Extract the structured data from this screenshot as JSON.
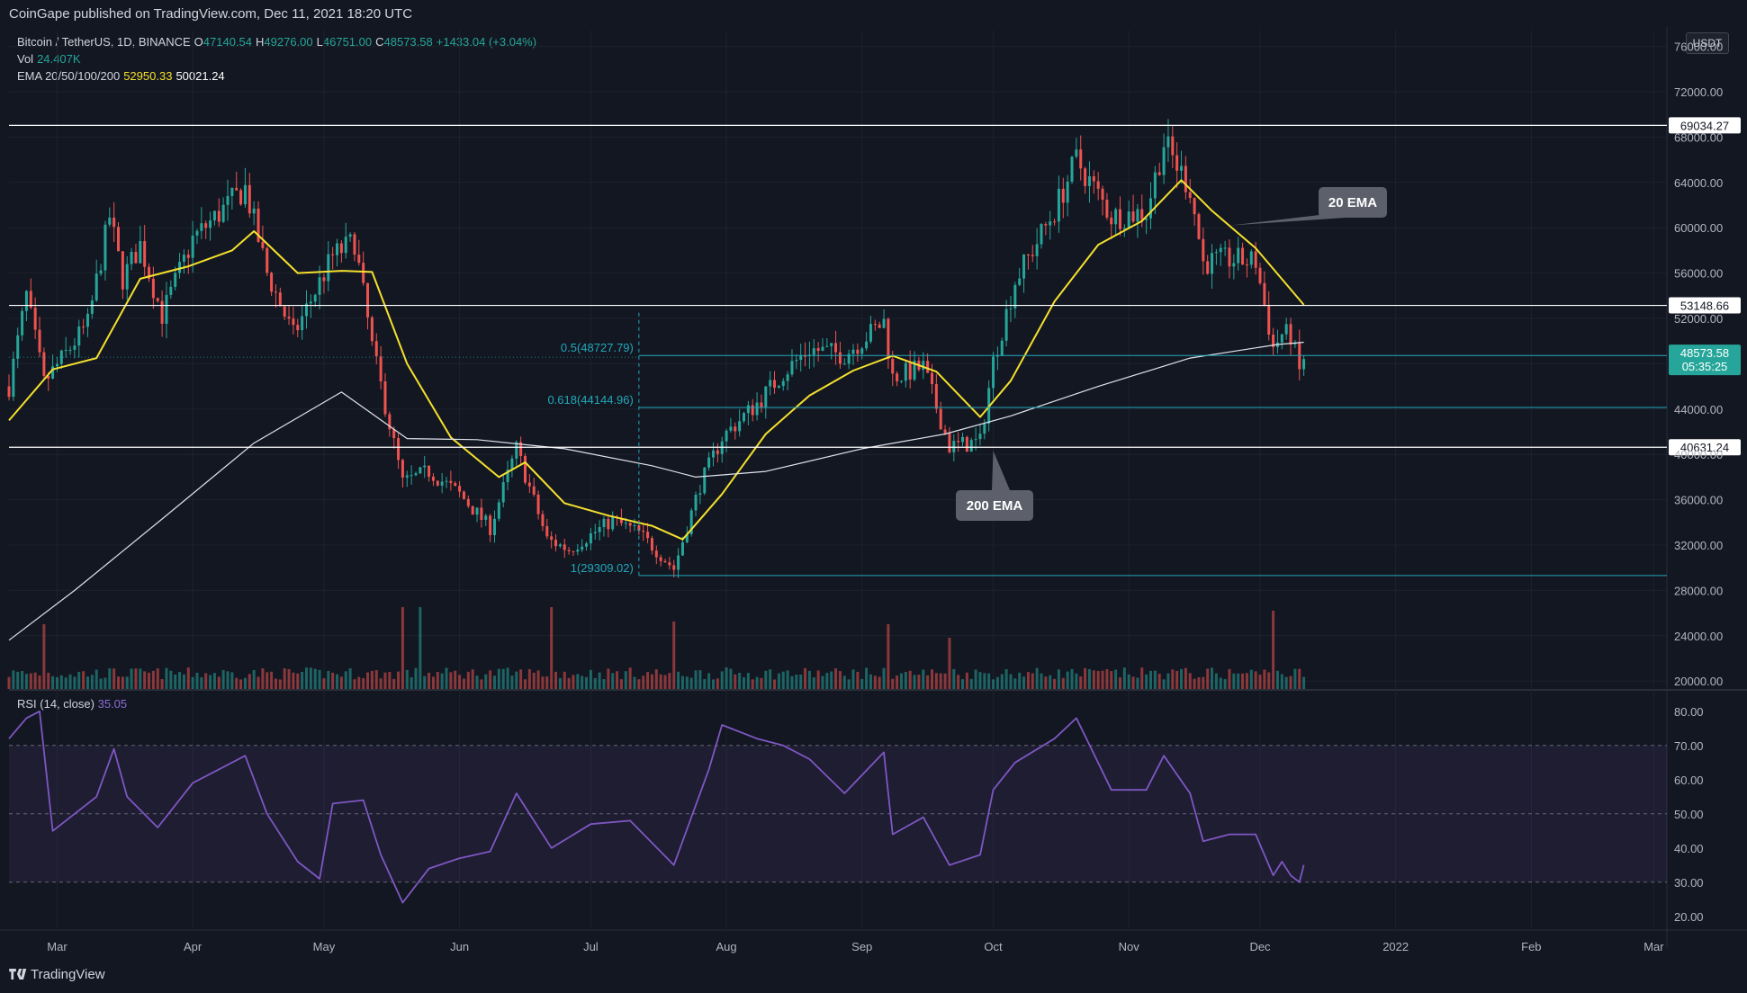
{
  "header": {
    "published": "CoinGape published on TradingView.com, Dec 11, 2021 18:20 UTC"
  },
  "legend": {
    "symbol": "Bitcoin / TetherUS, 1D, BINANCE",
    "open_label": "O",
    "open": "47140.54",
    "high_label": "H",
    "high": "49276.00",
    "low_label": "L",
    "low": "46751.00",
    "close_label": "C",
    "close": "48573.58",
    "change": "+1433.04 (+3.04%)",
    "vol_label": "Vol",
    "vol": "24.407K",
    "ema_label": "EMA 20/50/100/200",
    "ema_a": "52950.33",
    "ema_b": "50021.24"
  },
  "rsi_legend": {
    "label": "RSI (14, close)",
    "value": "35.05"
  },
  "currency": "USDT",
  "footer": {
    "brand": "TradingView"
  },
  "colors": {
    "background": "#131722",
    "up": "#26a69a",
    "down": "#ef5350",
    "ema20": "#f5e02d",
    "ema200": "#e0e3eb",
    "fib": "#22a7b8",
    "rsi": "#7e57c2",
    "level": "#ffffff"
  },
  "chart_data": [
    {
      "type": "line",
      "name": "price",
      "x_axis": {
        "tick_labels": [
          "Mar",
          "Apr",
          "May",
          "Jun",
          "Jul",
          "Aug",
          "Sep",
          "Oct",
          "Nov",
          "Dec",
          "2022",
          "Feb",
          "Mar"
        ],
        "tick_dates": [
          "2021-03-01",
          "2021-04-01",
          "2021-05-01",
          "2021-06-01",
          "2021-07-01",
          "2021-08-01",
          "2021-09-01",
          "2021-10-01",
          "2021-11-01",
          "2021-12-01",
          "2022-01-01",
          "2022-02-01",
          "2022-03-01"
        ],
        "range": [
          "2021-02-18",
          "2022-03-04"
        ]
      },
      "y_axis": {
        "ticks": [
          "76000.00",
          "72000.00",
          "68000.00",
          "64000.00",
          "60000.00",
          "56000.00",
          "52000.00",
          "48000.00",
          "44000.00",
          "40000.00",
          "36000.00",
          "32000.00",
          "28000.00",
          "24000.00",
          "20000.00"
        ],
        "range": [
          19300,
          77400
        ]
      },
      "price_path": [
        [
          "2021-02-18",
          46000
        ],
        [
          "2021-02-22",
          54000
        ],
        [
          "2021-02-26",
          46300
        ],
        [
          "2021-03-08",
          51500
        ],
        [
          "2021-03-13",
          61000
        ],
        [
          "2021-03-16",
          55500
        ],
        [
          "2021-03-20",
          58500
        ],
        [
          "2021-03-25",
          52300
        ],
        [
          "2021-04-01",
          59000
        ],
        [
          "2021-04-13",
          63500
        ],
        [
          "2021-04-18",
          56000
        ],
        [
          "2021-04-24",
          50500
        ],
        [
          "2021-05-03",
          57500
        ],
        [
          "2021-05-08",
          58800
        ],
        [
          "2021-05-12",
          49500
        ],
        [
          "2021-05-19",
          37500
        ],
        [
          "2021-05-25",
          38500
        ],
        [
          "2021-06-01",
          36500
        ],
        [
          "2021-06-08",
          33500
        ],
        [
          "2021-06-14",
          40500
        ],
        [
          "2021-06-21",
          32500
        ],
        [
          "2021-06-26",
          31600
        ],
        [
          "2021-07-06",
          34200
        ],
        [
          "2021-07-12",
          33100
        ],
        [
          "2021-07-20",
          29900
        ],
        [
          "2021-07-26",
          37300
        ],
        [
          "2021-07-31",
          41500
        ],
        [
          "2021-08-08",
          44500
        ],
        [
          "2021-08-14",
          47200
        ],
        [
          "2021-08-20",
          49300
        ],
        [
          "2021-08-28",
          48800
        ],
        [
          "2021-09-06",
          51700
        ],
        [
          "2021-09-08",
          46800
        ],
        [
          "2021-09-15",
          47700
        ],
        [
          "2021-09-21",
          40700
        ],
        [
          "2021-09-28",
          41100
        ],
        [
          "2021-10-01",
          48200
        ],
        [
          "2021-10-06",
          55300
        ],
        [
          "2021-10-15",
          61500
        ],
        [
          "2021-10-20",
          66000
        ],
        [
          "2021-10-28",
          61000
        ],
        [
          "2021-11-05",
          61400
        ],
        [
          "2021-11-09",
          67500
        ],
        [
          "2021-11-15",
          63500
        ],
        [
          "2021-11-18",
          56900
        ],
        [
          "2021-11-24",
          57200
        ],
        [
          "2021-11-30",
          57000
        ],
        [
          "2021-12-04",
          49400
        ],
        [
          "2021-12-06",
          50600
        ],
        [
          "2021-12-08",
          50500
        ],
        [
          "2021-12-10",
          47300
        ],
        [
          "2021-12-11",
          48573.58
        ]
      ],
      "series": [
        {
          "name": "20 EMA",
          "values": [
            [
              "2021-02-18",
              43000
            ],
            [
              "2021-02-28",
              47500
            ],
            [
              "2021-03-10",
              48500
            ],
            [
              "2021-03-20",
              55500
            ],
            [
              "2021-03-31",
              56600
            ],
            [
              "2021-04-10",
              58000
            ],
            [
              "2021-04-15",
              59700
            ],
            [
              "2021-04-25",
              56000
            ],
            [
              "2021-05-05",
              56200
            ],
            [
              "2021-05-12",
              56100
            ],
            [
              "2021-05-20",
              48000
            ],
            [
              "2021-05-30",
              41500
            ],
            [
              "2021-06-10",
              38000
            ],
            [
              "2021-06-16",
              39300
            ],
            [
              "2021-06-25",
              35700
            ],
            [
              "2021-07-05",
              34600
            ],
            [
              "2021-07-15",
              33700
            ],
            [
              "2021-07-22",
              32500
            ],
            [
              "2021-07-31",
              36500
            ],
            [
              "2021-08-10",
              41800
            ],
            [
              "2021-08-20",
              45200
            ],
            [
              "2021-08-30",
              47400
            ],
            [
              "2021-09-08",
              48700
            ],
            [
              "2021-09-18",
              47300
            ],
            [
              "2021-09-28",
              43300
            ],
            [
              "2021-10-05",
              46500
            ],
            [
              "2021-10-15",
              53500
            ],
            [
              "2021-10-25",
              58500
            ],
            [
              "2021-11-04",
              60600
            ],
            [
              "2021-11-13",
              64200
            ],
            [
              "2021-11-20",
              61500
            ],
            [
              "2021-11-30",
              58200
            ],
            [
              "2021-12-11",
              53200
            ]
          ]
        },
        {
          "name": "200 EMA",
          "values": [
            [
              "2021-02-18",
              23600
            ],
            [
              "2021-03-05",
              28000
            ],
            [
              "2021-03-25",
              34300
            ],
            [
              "2021-04-15",
              41000
            ],
            [
              "2021-05-05",
              45500
            ],
            [
              "2021-05-20",
              41400
            ],
            [
              "2021-06-05",
              41300
            ],
            [
              "2021-06-25",
              40500
            ],
            [
              "2021-07-15",
              39000
            ],
            [
              "2021-07-25",
              38000
            ],
            [
              "2021-08-10",
              38500
            ],
            [
              "2021-09-01",
              40500
            ],
            [
              "2021-09-20",
              41800
            ],
            [
              "2021-10-05",
              43400
            ],
            [
              "2021-10-25",
              46000
            ],
            [
              "2021-11-15",
              48500
            ],
            [
              "2021-12-05",
              49700
            ],
            [
              "2021-12-11",
              49900
            ]
          ]
        }
      ],
      "levels": [
        {
          "name": "resistance",
          "value": "69034.27"
        },
        {
          "name": "mid",
          "value": "53148.66"
        },
        {
          "name": "support",
          "value": "40631.24"
        }
      ],
      "fib": {
        "start": "2021-07-12",
        "levels": [
          {
            "label": "0.5(48727.79)",
            "value": 48727.79
          },
          {
            "label": "0.618(44144.96)",
            "value": 44144.96
          },
          {
            "label": "1(29309.02)",
            "value": 29309.02
          }
        ]
      },
      "last_price": {
        "value": "48573.58",
        "countdown": "05:35:25"
      },
      "annotations": [
        {
          "text": "20 EMA",
          "date": "2021-11-24",
          "value": 60200
        },
        {
          "text": "200 EMA",
          "date": "2021-10-01",
          "value": 40800
        }
      ],
      "volume_spikes": [
        [
          "2021-02-26",
          2.4
        ],
        [
          "2021-05-19",
          4.0
        ],
        [
          "2021-05-23",
          3.3
        ],
        [
          "2021-06-22",
          3.2
        ],
        [
          "2021-07-20",
          2.5
        ],
        [
          "2021-09-07",
          2.4
        ],
        [
          "2021-09-21",
          1.9
        ],
        [
          "2021-12-04",
          2.9
        ]
      ]
    },
    {
      "type": "line",
      "name": "RSI (14, close)",
      "y_axis": {
        "ticks": [
          "80.00",
          "70.00",
          "60.00",
          "50.00",
          "40.00",
          "30.00",
          "20.00"
        ],
        "range": [
          16,
          86
        ]
      },
      "bands": [
        70,
        50,
        30
      ],
      "values": [
        [
          "2021-02-18",
          72
        ],
        [
          "2021-02-22",
          78
        ],
        [
          "2021-02-25",
          80
        ],
        [
          "2021-02-28",
          45
        ],
        [
          "2021-03-05",
          50
        ],
        [
          "2021-03-10",
          55
        ],
        [
          "2021-03-14",
          69
        ],
        [
          "2021-03-17",
          55
        ],
        [
          "2021-03-24",
          46
        ],
        [
          "2021-04-01",
          59
        ],
        [
          "2021-04-13",
          67
        ],
        [
          "2021-04-18",
          50
        ],
        [
          "2021-04-25",
          36
        ],
        [
          "2021-04-30",
          31
        ],
        [
          "2021-05-03",
          53
        ],
        [
          "2021-05-10",
          54
        ],
        [
          "2021-05-14",
          38
        ],
        [
          "2021-05-19",
          24
        ],
        [
          "2021-05-25",
          34
        ],
        [
          "2021-06-01",
          37
        ],
        [
          "2021-06-08",
          39
        ],
        [
          "2021-06-14",
          56
        ],
        [
          "2021-06-22",
          40
        ],
        [
          "2021-07-01",
          47
        ],
        [
          "2021-07-10",
          48
        ],
        [
          "2021-07-20",
          35
        ],
        [
          "2021-07-28",
          63
        ],
        [
          "2021-07-31",
          76
        ],
        [
          "2021-08-08",
          72
        ],
        [
          "2021-08-14",
          70
        ],
        [
          "2021-08-20",
          66
        ],
        [
          "2021-08-28",
          56
        ],
        [
          "2021-09-06",
          68
        ],
        [
          "2021-09-08",
          44
        ],
        [
          "2021-09-15",
          49
        ],
        [
          "2021-09-21",
          35
        ],
        [
          "2021-09-28",
          38
        ],
        [
          "2021-10-01",
          57
        ],
        [
          "2021-10-06",
          65
        ],
        [
          "2021-10-15",
          72
        ],
        [
          "2021-10-20",
          78
        ],
        [
          "2021-10-28",
          57
        ],
        [
          "2021-11-05",
          57
        ],
        [
          "2021-11-09",
          67
        ],
        [
          "2021-11-15",
          56
        ],
        [
          "2021-11-18",
          42
        ],
        [
          "2021-11-24",
          44
        ],
        [
          "2021-11-30",
          44
        ],
        [
          "2021-12-04",
          32
        ],
        [
          "2021-12-06",
          36
        ],
        [
          "2021-12-08",
          32
        ],
        [
          "2021-12-10",
          30
        ],
        [
          "2021-12-11",
          35.05
        ]
      ]
    }
  ]
}
